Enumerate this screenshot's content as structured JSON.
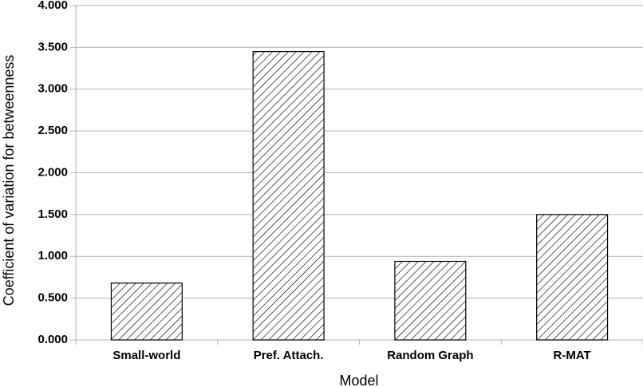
{
  "chart_data": {
    "type": "bar",
    "x_label": "Model",
    "y_label": "Coefficient of variation for betweenness",
    "categories": [
      "Small-world",
      "Pref. Attach.",
      "Random Graph",
      "R-MAT"
    ],
    "values": [
      0.68,
      3.45,
      0.94,
      1.5
    ],
    "color": "#000000",
    "ylim": [
      0,
      4
    ],
    "yticks": [
      {
        "value": 0,
        "label": "0.000"
      },
      {
        "value": 0.5,
        "label": "0.500"
      },
      {
        "value": 1,
        "label": "1.000"
      },
      {
        "value": 1.5,
        "label": "1.500"
      },
      {
        "value": 2,
        "label": "2.000"
      },
      {
        "value": 2.5,
        "label": "2.500"
      },
      {
        "value": 3,
        "label": "3.000"
      },
      {
        "value": 3.5,
        "label": "3.500"
      },
      {
        "value": 4,
        "label": "4.000"
      }
    ],
    "grid": true
  }
}
